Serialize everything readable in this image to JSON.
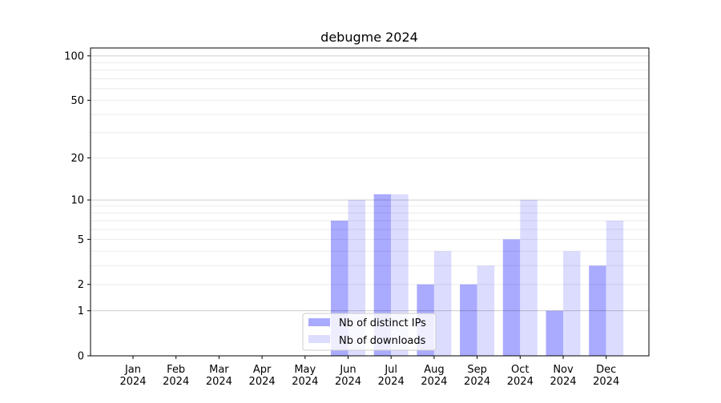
{
  "chart_data": {
    "type": "bar",
    "title": "debugme 2024",
    "xlabel": "",
    "ylabel": "",
    "yscale": "log10(1+y)",
    "ylim": [
      0,
      113
    ],
    "yticks": [
      0,
      1,
      2,
      5,
      10,
      20,
      50,
      100
    ],
    "ytick_labels": [
      "0",
      "1",
      "2",
      "5",
      "10",
      "20",
      "50",
      "100"
    ],
    "grid": true,
    "categories": [
      "Jan\n2024",
      "Feb\n2024",
      "Mar\n2024",
      "Apr\n2024",
      "May\n2024",
      "Jun\n2024",
      "Jul\n2024",
      "Aug\n2024",
      "Sep\n2024",
      "Oct\n2024",
      "Nov\n2024",
      "Dec\n2024"
    ],
    "series": [
      {
        "name": "Nb of distinct IPs",
        "color": "#aaaaff",
        "values": [
          0,
          0,
          0,
          0,
          0,
          7,
          11,
          2,
          2,
          5,
          1,
          3
        ]
      },
      {
        "name": "Nb of downloads",
        "color": "#dcdcff",
        "values": [
          0,
          0,
          0,
          0,
          0,
          10,
          11,
          4,
          3,
          10,
          4,
          7
        ]
      }
    ],
    "legend_position": "lower-center"
  }
}
